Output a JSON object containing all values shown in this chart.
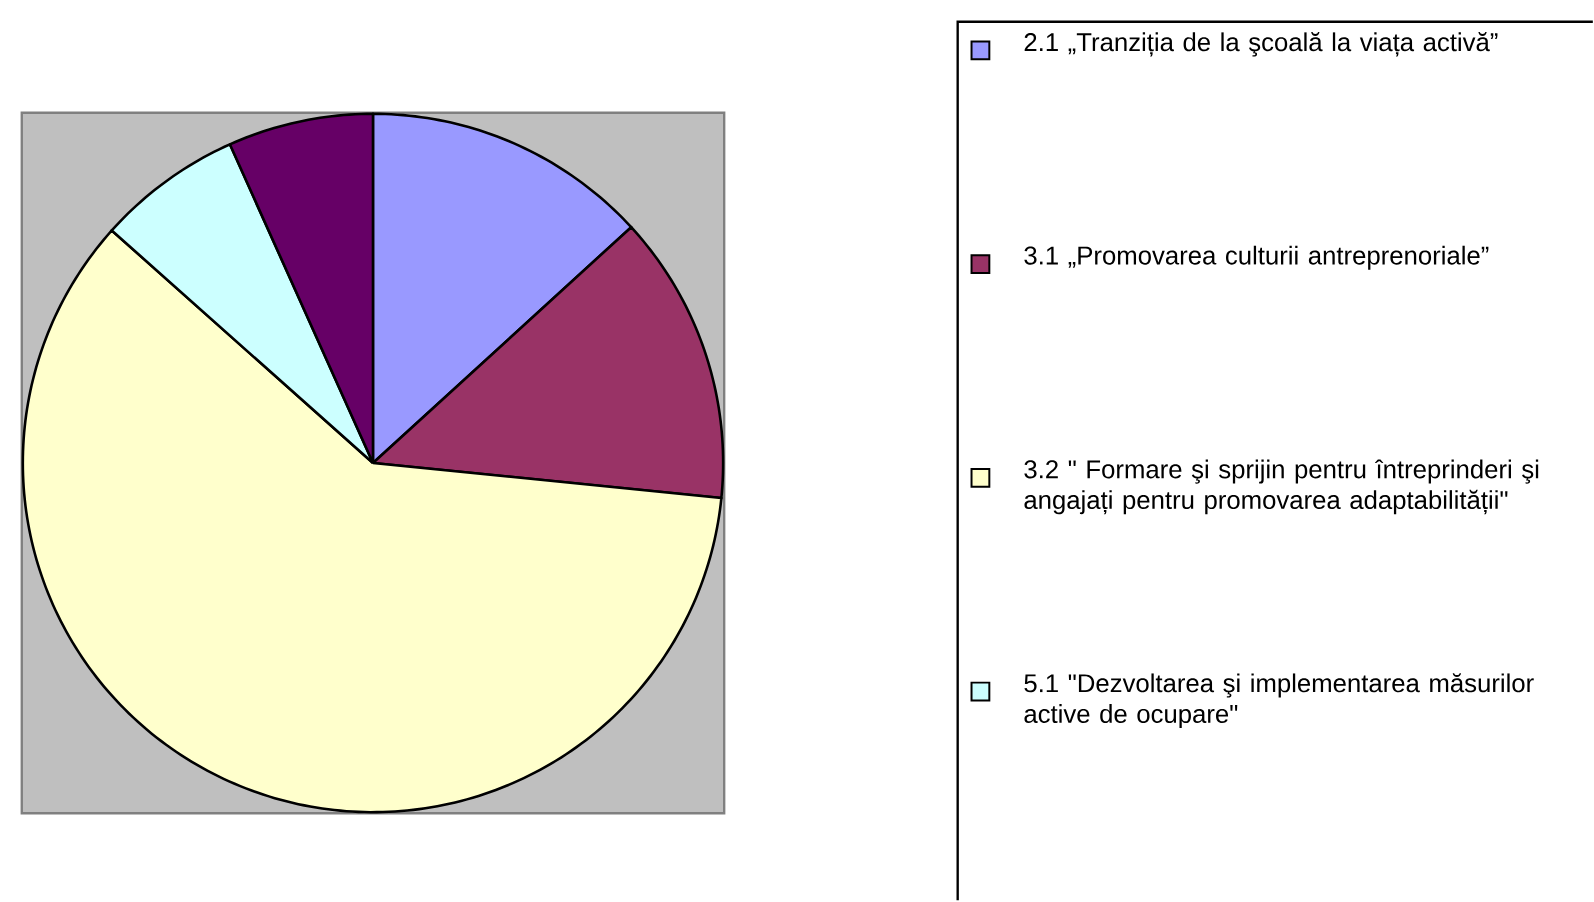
{
  "chart_data": {
    "type": "pie",
    "categories": [
      "2.1 „Tranziția de la şcoală la viața activă”",
      "3.1 „Promovarea culturii antreprenoriale”",
      "3.2 \" Formare şi sprijin pentru întreprinderi şi angajați pentru promovarea adaptabilității\"",
      "5.1 \"Dezvoltarea şi implementarea măsurilor active de ocupare\"",
      null
    ],
    "values": [
      13.2,
      13.4,
      60.0,
      6.7,
      6.7
    ],
    "colors": [
      "#9999ff",
      "#993366",
      "#ffffcc",
      "#ccffff",
      "#660066"
    ],
    "legend": "right"
  }
}
